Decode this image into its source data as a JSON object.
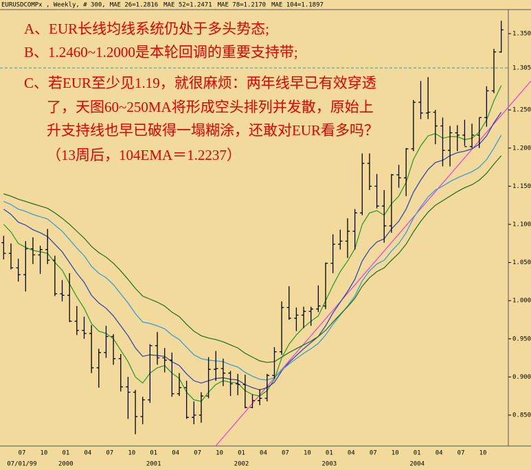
{
  "chart_data": {
    "type": "ohlc",
    "header": "EURUSDCOMPx , Weekly, # 300,",
    "categories": [
      null,
      null,
      null,
      "07",
      null,
      null,
      "10",
      null,
      null,
      "01",
      null,
      null,
      "04",
      null,
      null,
      "07",
      null,
      null,
      "10",
      null,
      null,
      "01",
      null,
      null,
      "04",
      null,
      null,
      "07",
      null,
      null,
      "10",
      null,
      null,
      "01",
      null,
      null,
      "04",
      null,
      null,
      "07",
      null,
      null,
      "10",
      null,
      null,
      "01",
      null,
      null,
      "04",
      null,
      null,
      "07",
      null,
      null,
      "10",
      null,
      null,
      "01",
      null,
      null,
      "04",
      null,
      null,
      "07",
      null,
      null,
      "10",
      null,
      null
    ],
    "year_labels": [
      null,
      null,
      null,
      "07/01/99",
      null,
      null,
      null,
      null,
      null,
      "2000",
      null,
      null,
      null,
      null,
      null,
      null,
      null,
      null,
      null,
      null,
      null,
      "2001",
      null,
      null,
      null,
      null,
      null,
      null,
      null,
      null,
      null,
      null,
      null,
      "2002",
      null,
      null,
      null,
      null,
      null,
      null,
      null,
      null,
      null,
      null,
      null,
      "2003",
      null,
      null,
      null,
      null,
      null,
      null,
      null,
      null,
      null,
      null,
      null,
      "2004",
      null,
      null,
      null,
      null,
      null,
      null,
      null,
      null,
      null,
      null,
      null
    ],
    "open": [
      1.076,
      1.062,
      1.043,
      1.034,
      1.068,
      1.06,
      1.067,
      1.053,
      1.009,
      1.007,
      0.973,
      0.961,
      0.957,
      0.912,
      0.932,
      0.953,
      0.924,
      0.887,
      0.88,
      0.848,
      0.87,
      0.941,
      0.925,
      0.922,
      0.878,
      0.886,
      0.847,
      0.85,
      0.875,
      0.91,
      0.911,
      0.905,
      0.891,
      0.89,
      0.86,
      0.869,
      0.872,
      0.902,
      0.933,
      0.991,
      0.977,
      0.981,
      0.986,
      0.989,
      0.993,
      1.049,
      1.074,
      1.078,
      1.091,
      1.115,
      1.18,
      1.15,
      1.124,
      1.098,
      1.165,
      1.161,
      1.199,
      1.26,
      1.246,
      1.247,
      1.229,
      1.197,
      1.22,
      1.217,
      1.202,
      1.217,
      1.24,
      1.275,
      1.326
    ],
    "high": [
      1.085,
      1.075,
      1.055,
      1.078,
      1.083,
      1.072,
      1.094,
      1.059,
      1.027,
      1.036,
      0.993,
      0.979,
      0.968,
      0.937,
      0.967,
      0.956,
      0.93,
      0.9,
      0.883,
      0.874,
      0.943,
      0.959,
      0.938,
      0.932,
      0.905,
      0.895,
      0.868,
      0.88,
      0.926,
      0.934,
      0.924,
      0.908,
      0.904,
      0.903,
      0.877,
      0.884,
      0.904,
      0.939,
      0.999,
      1.019,
      0.991,
      0.992,
      0.992,
      1.02,
      1.05,
      1.087,
      1.093,
      1.108,
      1.12,
      1.193,
      1.193,
      1.166,
      1.145,
      1.166,
      1.178,
      1.2,
      1.263,
      1.288,
      1.293,
      1.25,
      1.24,
      1.229,
      1.23,
      1.237,
      1.232,
      1.24,
      1.281,
      1.33,
      1.367
    ],
    "low": [
      1.054,
      1.041,
      1.025,
      1.012,
      1.048,
      1.035,
      1.048,
      1.006,
      0.999,
      0.972,
      0.955,
      0.95,
      0.905,
      0.886,
      0.925,
      0.916,
      0.881,
      0.845,
      0.825,
      0.838,
      0.866,
      0.916,
      0.906,
      0.874,
      0.875,
      0.845,
      0.838,
      0.84,
      0.872,
      0.895,
      0.888,
      0.875,
      0.876,
      0.859,
      0.859,
      0.863,
      0.868,
      0.898,
      0.929,
      0.975,
      0.96,
      0.964,
      0.967,
      0.985,
      0.989,
      1.036,
      1.067,
      1.056,
      1.067,
      1.112,
      1.145,
      1.121,
      1.076,
      1.089,
      1.148,
      1.137,
      1.196,
      1.238,
      1.238,
      1.205,
      1.176,
      1.176,
      1.196,
      1.203,
      1.2,
      1.2,
      1.228,
      1.272,
      1.325
    ],
    "close": [
      1.062,
      1.043,
      1.034,
      1.068,
      1.06,
      1.067,
      1.053,
      1.009,
      1.007,
      0.973,
      0.961,
      0.957,
      0.912,
      0.932,
      0.953,
      0.924,
      0.887,
      0.88,
      0.848,
      0.87,
      0.941,
      0.925,
      0.922,
      0.878,
      0.886,
      0.847,
      0.85,
      0.875,
      0.91,
      0.911,
      0.905,
      0.891,
      0.89,
      0.86,
      0.869,
      0.872,
      0.902,
      0.933,
      0.991,
      0.977,
      0.981,
      0.986,
      0.989,
      0.993,
      1.049,
      1.074,
      1.078,
      1.091,
      1.115,
      1.18,
      1.15,
      1.124,
      1.098,
      1.165,
      1.161,
      1.199,
      1.26,
      1.246,
      1.247,
      1.229,
      1.197,
      1.22,
      1.217,
      1.202,
      1.217,
      1.24,
      1.275,
      1.326,
      1.355
    ],
    "bar_color": "#000000",
    "series": [
      {
        "name": "MAE 26=1.2816",
        "color": "#1f9a1f",
        "values": [
          1.1,
          1.09,
          1.075,
          1.07,
          1.066,
          1.064,
          1.062,
          1.05,
          1.04,
          1.022,
          1.005,
          0.99,
          0.97,
          0.96,
          0.957,
          0.95,
          0.935,
          0.92,
          0.9,
          0.892,
          0.905,
          0.912,
          0.915,
          0.905,
          0.898,
          0.88,
          0.87,
          0.868,
          0.88,
          0.89,
          0.895,
          0.893,
          0.892,
          0.882,
          0.877,
          0.875,
          0.882,
          0.897,
          0.925,
          0.943,
          0.955,
          0.965,
          0.973,
          0.98,
          1.0,
          1.02,
          1.038,
          1.052,
          1.068,
          1.1,
          1.115,
          1.118,
          1.112,
          1.127,
          1.137,
          1.155,
          1.185,
          1.203,
          1.216,
          1.219,
          1.213,
          1.215,
          1.215,
          1.211,
          1.213,
          1.221,
          1.237,
          1.262,
          1.282
        ]
      },
      {
        "name": "MAE 52=1.2471",
        "color": "#2040b0",
        "values": [
          1.12,
          1.113,
          1.103,
          1.099,
          1.093,
          1.089,
          1.084,
          1.074,
          1.064,
          1.05,
          1.036,
          1.024,
          1.007,
          0.997,
          0.99,
          0.98,
          0.967,
          0.954,
          0.938,
          0.927,
          0.929,
          0.928,
          0.927,
          0.92,
          0.915,
          0.904,
          0.895,
          0.892,
          0.895,
          0.898,
          0.899,
          0.897,
          0.896,
          0.89,
          0.886,
          0.883,
          0.886,
          0.893,
          0.908,
          0.919,
          0.928,
          0.937,
          0.945,
          0.953,
          0.967,
          0.984,
          0.998,
          1.012,
          1.028,
          1.052,
          1.067,
          1.077,
          1.081,
          1.094,
          1.104,
          1.12,
          1.142,
          1.158,
          1.172,
          1.181,
          1.184,
          1.19,
          1.194,
          1.196,
          1.199,
          1.205,
          1.216,
          1.233,
          1.247
        ]
      },
      {
        "name": "MAE 78=1.2170",
        "color": "#2a9ad8",
        "values": [
          1.13,
          1.126,
          1.12,
          1.117,
          1.113,
          1.11,
          1.107,
          1.099,
          1.091,
          1.08,
          1.069,
          1.059,
          1.045,
          1.036,
          1.03,
          1.021,
          1.009,
          0.997,
          0.983,
          0.972,
          0.97,
          0.967,
          0.963,
          0.955,
          0.949,
          0.939,
          0.929,
          0.924,
          0.922,
          0.921,
          0.92,
          0.916,
          0.913,
          0.906,
          0.901,
          0.897,
          0.896,
          0.899,
          0.909,
          0.917,
          0.924,
          0.931,
          0.937,
          0.944,
          0.955,
          0.969,
          0.981,
          0.993,
          1.006,
          1.026,
          1.039,
          1.048,
          1.053,
          1.065,
          1.075,
          1.089,
          1.108,
          1.123,
          1.136,
          1.145,
          1.15,
          1.156,
          1.161,
          1.165,
          1.169,
          1.175,
          1.185,
          1.2,
          1.217
        ]
      },
      {
        "name": "MAE 104=1.1897",
        "color": "#1a6e1a",
        "values": [
          1.14,
          1.137,
          1.133,
          1.13,
          1.127,
          1.124,
          1.121,
          1.115,
          1.108,
          1.1,
          1.091,
          1.082,
          1.071,
          1.063,
          1.057,
          1.049,
          1.039,
          1.028,
          1.016,
          1.006,
          1.002,
          0.998,
          0.993,
          0.985,
          0.979,
          0.969,
          0.96,
          0.954,
          0.951,
          0.949,
          0.946,
          0.942,
          0.938,
          0.931,
          0.926,
          0.921,
          0.919,
          0.92,
          0.926,
          0.932,
          0.937,
          0.942,
          0.947,
          0.953,
          0.961,
          0.972,
          0.982,
          0.992,
          1.003,
          1.019,
          1.03,
          1.038,
          1.043,
          1.053,
          1.062,
          1.074,
          1.09,
          1.104,
          1.116,
          1.125,
          1.131,
          1.137,
          1.143,
          1.148,
          1.152,
          1.158,
          1.167,
          1.179,
          1.19
        ]
      }
    ],
    "ylim": [
      0.8095,
      1.3806
    ],
    "yticks": [
      {
        "value": 0.85,
        "label": "0.8500"
      },
      {
        "value": 0.9,
        "label": "0.9000"
      },
      {
        "value": 0.95,
        "label": "0.9500"
      },
      {
        "value": 1.0,
        "label": "1.0000"
      },
      {
        "value": 1.05,
        "label": "1.0500"
      },
      {
        "value": 1.1,
        "label": "1.1000"
      },
      {
        "value": 1.15,
        "label": "1.1500"
      },
      {
        "value": 1.2,
        "label": "1.2000"
      },
      {
        "value": 1.25,
        "label": "1.2500"
      },
      {
        "value": 1.35,
        "label": "1.3500"
      }
    ],
    "hline": {
      "value": 1.305,
      "label": "1.3050",
      "color": "#2a9aa0"
    },
    "annotation_color": "#e00000",
    "annotations": [
      "A、EUR长线均线系统仍处于多头势态;",
      "B、1.2460~1.2000是本轮回调的重要支持带;",
      "C、若EUR至少见1.19，就很麻烦：两年线早已有效穿透",
      "了，天图60~250MA将形成空头排列并发散，原始上",
      "升支持线也早已破得一塌糊涂，还敢对EUR看多吗？",
      "（13周后，104EMA＝1.2237）"
    ]
  }
}
